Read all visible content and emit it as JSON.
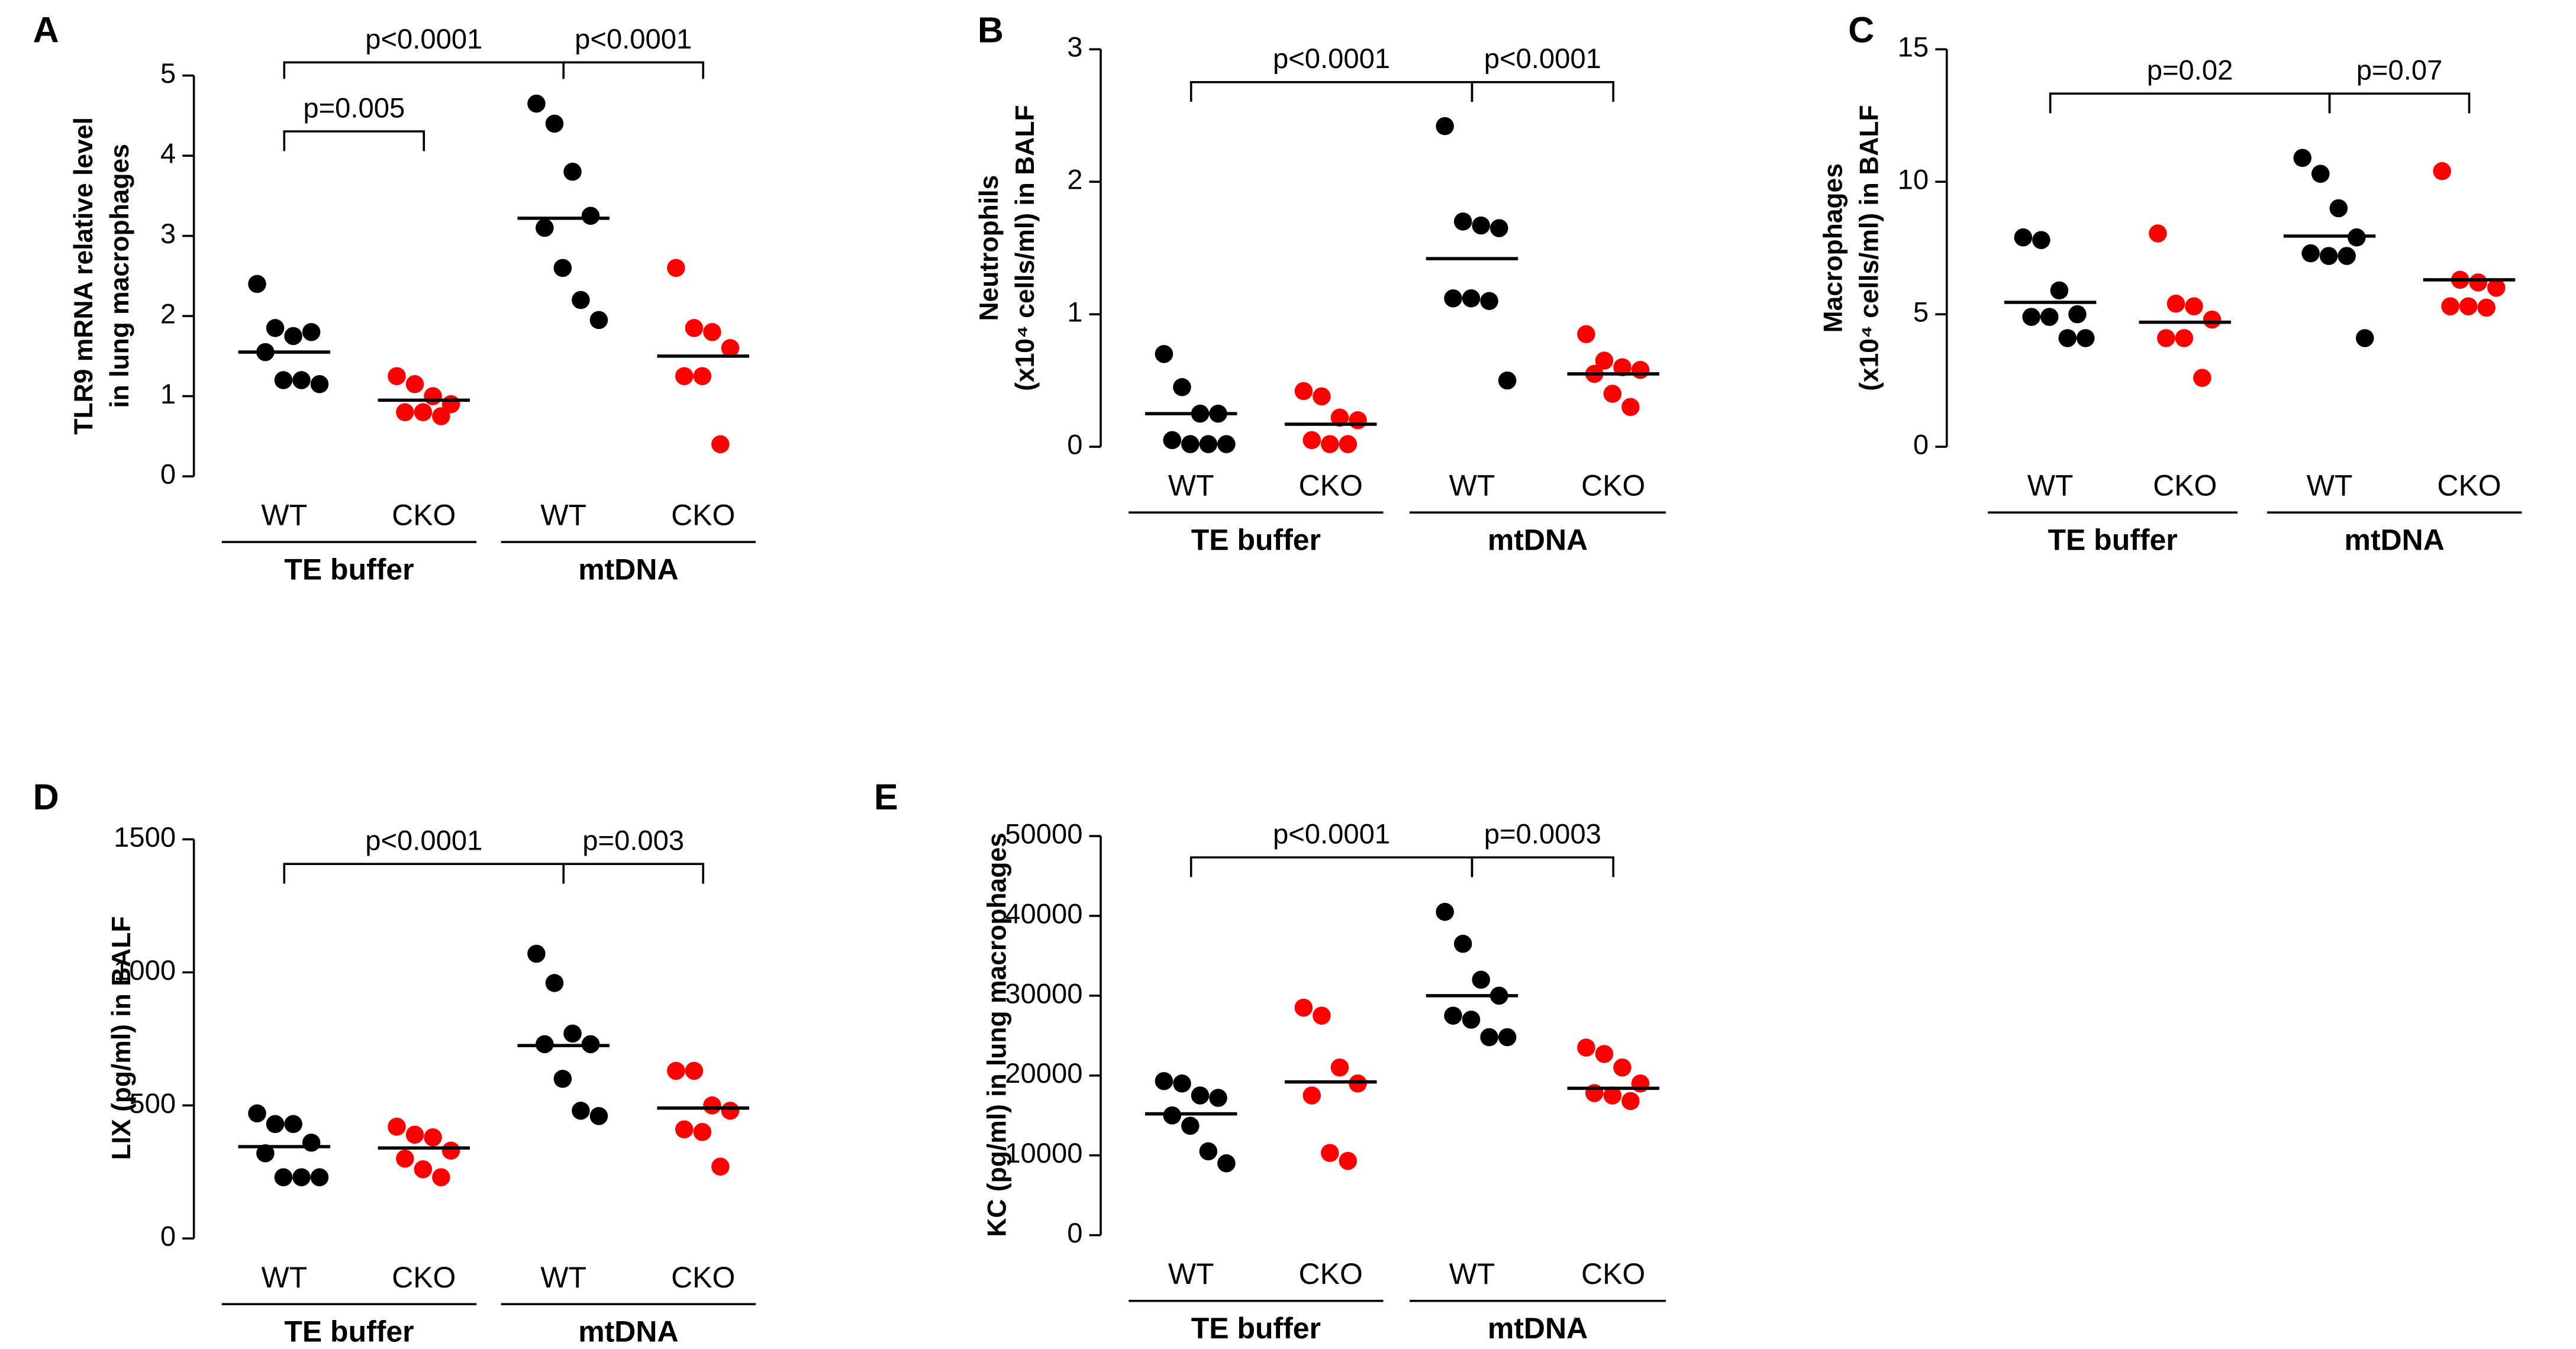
{
  "chart_data": [
    {
      "type": "dot",
      "label": "A",
      "ylabel": [
        "TLR9 mRNA relative level",
        "in lung macrophages"
      ],
      "categories": [
        "WT",
        "CKO",
        "WT",
        "CKO"
      ],
      "groups": [
        "TE buffer",
        "mtDNA"
      ],
      "colors": [
        "#000000",
        "#ff0000",
        "#000000",
        "#ff0000"
      ],
      "values": [
        [
          2.4,
          1.85,
          1.75,
          1.8,
          1.55,
          1.2,
          1.2,
          1.15
        ],
        [
          1.25,
          1.15,
          1.0,
          0.9,
          0.8,
          0.8,
          0.75
        ],
        [
          4.65,
          4.4,
          3.8,
          3.25,
          3.1,
          2.6,
          2.2,
          1.95
        ],
        [
          2.6,
          1.85,
          1.8,
          1.6,
          1.25,
          1.25,
          0.4
        ]
      ],
      "medians": [
        1.55,
        0.95,
        3.22,
        1.5
      ],
      "ylim": [
        0,
        5
      ],
      "yticks": [
        0,
        1,
        2,
        3,
        4,
        5
      ],
      "annotations": [
        "p=0.005",
        "p<0.0001",
        "p<0.0001"
      ]
    },
    {
      "type": "dot",
      "label": "B",
      "ylabel": [
        "Neutrophils",
        "(x10⁴ cells/ml) in BALF"
      ],
      "categories": [
        "WT",
        "CKO",
        "WT",
        "CKO"
      ],
      "groups": [
        "TE buffer",
        "mtDNA"
      ],
      "colors": [
        "#000000",
        "#ff0000",
        "#000000",
        "#ff0000"
      ],
      "values": [
        [
          0.7,
          0.45,
          0.25,
          0.25,
          0.05,
          0.02,
          0.02,
          0.02
        ],
        [
          0.42,
          0.38,
          0.22,
          0.2,
          0.05,
          0.02,
          0.02
        ],
        [
          2.42,
          1.7,
          1.67,
          1.65,
          1.12,
          1.12,
          1.1,
          0.5
        ],
        [
          0.85,
          0.65,
          0.6,
          0.58,
          0.55,
          0.4,
          0.3
        ]
      ],
      "medians": [
        0.25,
        0.17,
        1.42,
        0.55
      ],
      "ylim": [
        0,
        3
      ],
      "yticks": [
        0,
        1,
        2,
        3
      ],
      "annotations": [
        "p<0.0001",
        "p<0.0001"
      ]
    },
    {
      "type": "dot",
      "label": "C",
      "ylabel": [
        "Macrophages",
        "(x10⁴ cells/ml) in BALF"
      ],
      "categories": [
        "WT",
        "CKO",
        "WT",
        "CKO"
      ],
      "groups": [
        "TE buffer",
        "mtDNA"
      ],
      "colors": [
        "#000000",
        "#ff0000",
        "#000000",
        "#ff0000"
      ],
      "values": [
        [
          7.9,
          7.8,
          5.9,
          5.0,
          4.9,
          4.9,
          4.1,
          4.1
        ],
        [
          8.05,
          5.4,
          5.3,
          4.8,
          4.1,
          4.1,
          2.6
        ],
        [
          10.9,
          10.3,
          9.0,
          7.9,
          7.3,
          7.2,
          7.2,
          4.1
        ],
        [
          10.4,
          6.3,
          6.2,
          6.0,
          5.3,
          5.3,
          5.25
        ]
      ],
      "medians": [
        5.45,
        4.7,
        7.95,
        6.3
      ],
      "ylim": [
        0,
        15
      ],
      "yticks": [
        0,
        5,
        10,
        15
      ],
      "annotations": [
        "p=0.02",
        "p=0.07"
      ]
    },
    {
      "type": "dot",
      "label": "D",
      "ylabel": [
        "LIX (pg/ml) in BALF"
      ],
      "categories": [
        "WT",
        "CKO",
        "WT",
        "CKO"
      ],
      "groups": [
        "TE buffer",
        "mtDNA"
      ],
      "colors": [
        "#000000",
        "#ff0000",
        "#000000",
        "#ff0000"
      ],
      "values": [
        [
          470,
          430,
          430,
          360,
          320,
          230,
          230,
          230
        ],
        [
          420,
          390,
          380,
          330,
          300,
          260,
          230
        ],
        [
          1070,
          960,
          770,
          730,
          730,
          600,
          480,
          460
        ],
        [
          630,
          630,
          500,
          480,
          410,
          400,
          270
        ]
      ],
      "medians": [
        345,
        340,
        725,
        490
      ],
      "ylim": [
        0,
        1500
      ],
      "yticks": [
        0,
        500,
        1000,
        1500
      ],
      "annotations": [
        "p<0.0001",
        "p=0.003"
      ]
    },
    {
      "type": "dot",
      "label": "E",
      "ylabel": [
        "KC (pg/ml) in lung macrophages"
      ],
      "categories": [
        "WT",
        "CKO",
        "WT",
        "CKO"
      ],
      "groups": [
        "TE buffer",
        "mtDNA"
      ],
      "colors": [
        "#000000",
        "#ff0000",
        "#000000",
        "#ff0000"
      ],
      "values": [
        [
          19300,
          19000,
          17500,
          17200,
          15000,
          13700,
          10500,
          9000
        ],
        [
          28500,
          27500,
          21000,
          19000,
          17500,
          10300,
          9300
        ],
        [
          40500,
          36500,
          32000,
          30000,
          27500,
          27000,
          24800,
          24800
        ],
        [
          23500,
          22700,
          21000,
          19000,
          17800,
          17500,
          16800
        ]
      ],
      "medians": [
        15200,
        19200,
        30000,
        18400
      ],
      "ylim": [
        0,
        50000
      ],
      "yticks": [
        0,
        10000,
        20000,
        30000,
        40000,
        50000
      ],
      "annotations": [
        "p<0.0001",
        "p=0.0003"
      ]
    }
  ]
}
